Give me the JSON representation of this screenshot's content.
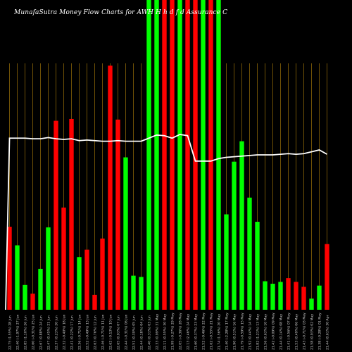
{
  "title": "MunafaSutra  Money Flow  Charts for AWH                    H  h  d  f  d Assurance   C",
  "chart_data": {
    "type": "bar",
    "title": "MunafaSutra  Money Flow  Charts for AWH                    H  h  d  f  d Assurance   C",
    "categories": [
      "22.75 (1.55%) 28 Jun",
      "22.40 (-1.97%) 27 Jun",
      "22.85 (1.10%) 26 Jun",
      "22.60 (-0.31%) 25 Jun",
      "22.67 (0.88%) 24 Jun",
      "22.47 (0.45%) 21 Jun",
      "22.37 (0.23%) 20 Jun",
      "22.32 (-0.40%) 18 Jun",
      "22.41 (0.22%) 17 Jun",
      "22.36 (-0.71%) 14 Jun",
      "22.52 (-0.49%) 13 Jun",
      "22.63 (0.76%) 12 Jun",
      "22.46 (-0.71%) 11 Jun",
      "22.62 (-0.13%) 10 Jun",
      "22.65 (0.93%) 07 Jun",
      "22.44 (-0.31%) 06 Jun",
      "22.51 (0.30%) 05 Jun",
      "22.44 (0.18%) 04 Jun",
      "22.40 (0.31%) 03 Jun",
      "22.33 (0.99%) 31 May",
      "22.11 (0.55%) 30 May",
      "21.99 (-0.27%) 29 May",
      "22.05 (-0.36%) 28 May",
      "22.13 (2.46%) 24 May",
      "21.60 (0.37%) 23 May",
      "21.52 (-0.46%) 22 May",
      "21.62 (-0.55%) 21 May",
      "21.74 (1.56%) 20 May",
      "21.40 (-2.28%) 17 May",
      "21.90 (0.51%) 16 May",
      "21.79 (-0.59%) 15 May",
      "21.92 (0.44%) 14 May",
      "21.82 (1.21%) 13 May",
      "21.56 (0.63%) 10 May",
      "21.42 (-0.09%) 09 May",
      "21.44 (0.14%) 08 May",
      "21.41 (-0.56%) 07 May",
      "21.53 (0.49%) 06 May",
      "21.43 (-0.71%) 03 May",
      "21.58 (0.93%) 02 May",
      "21.38 (-0.28%) 01 May",
      "21.44 (0.61%) 30 Apr"
    ],
    "series": [
      {
        "values": [
          30,
          24,
          10,
          7,
          9,
          30,
          68,
          38,
          77,
          22,
          26,
          6,
          30,
          130,
          68,
          48,
          45,
          23,
          250,
          190,
          18,
          250,
          250,
          250,
          250,
          250,
          250,
          250,
          35,
          25,
          17,
          53,
          48,
          36,
          14,
          12,
          13,
          14,
          12,
          11,
          15,
          27
        ],
        "colors": [
          "red",
          "green",
          "green",
          "red",
          "green",
          "green",
          "red",
          "red",
          "red",
          "green",
          "red",
          "red",
          "red",
          "red",
          "red",
          "green",
          "green",
          "green",
          "green",
          "green",
          "red",
          "red",
          "green",
          "red",
          "red",
          "green",
          "red",
          "green",
          "green",
          "green",
          "green",
          "green",
          "green",
          "green",
          "green",
          "green",
          "red",
          "red",
          "red",
          "green",
          "green",
          "red"
        ]
      }
    ],
    "bar_heights_shown": [
      134,
      104,
      40,
      26,
      66,
      133,
      305,
      165,
      308,
      85,
      97,
      24,
      115,
      394,
      307,
      246,
      55,
      53,
      500,
      500,
      500,
      500,
      500,
      500,
      500,
      500,
      500,
      500,
      154,
      239,
      272,
      181,
      142,
      46,
      42,
      45,
      51,
      45,
      37,
      18,
      39,
      106
    ],
    "price_line": [
      277,
      277,
      277,
      276,
      276,
      278,
      276,
      275,
      276,
      273,
      274,
      273,
      272,
      272,
      273,
      272,
      272,
      272,
      277,
      282,
      281,
      277,
      283,
      281,
      240,
      240,
      240,
      244,
      246,
      247,
      248,
      249,
      250,
      250,
      250,
      251,
      252,
      251,
      252,
      255,
      258,
      251
    ],
    "ylim": [
      0,
      500
    ],
    "grid": true,
    "colors": {
      "up": "#00ff00",
      "down": "#ff0000",
      "price": "#ffffff",
      "grid": "#b8860b",
      "background": "#000000"
    }
  }
}
